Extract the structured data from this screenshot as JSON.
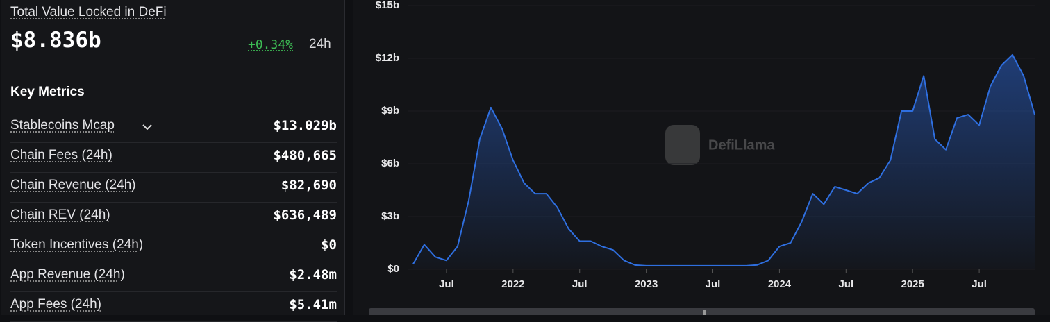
{
  "header": {
    "title": "Total Value Locked in DeFi",
    "value": "$8.836b",
    "change": "+0.34%",
    "period": "24h"
  },
  "key_metrics": {
    "title": "Key Metrics",
    "rows": [
      {
        "label": "Stablecoins Mcap",
        "value": "$13.029b"
      },
      {
        "label": "Chain Fees (24h)",
        "value": "$480,665"
      },
      {
        "label": "Chain Revenue (24h)",
        "value": "$82,690"
      },
      {
        "label": "Chain REV (24h)",
        "value": "$636,489"
      },
      {
        "label": "Token Incentives (24h)",
        "value": "$0"
      },
      {
        "label": "App Revenue (24h)",
        "value": "$2.48m"
      },
      {
        "label": "App Fees (24h)",
        "value": "$5.41m"
      }
    ]
  },
  "watermark": "DefiLlama",
  "chart_data": {
    "type": "area",
    "x": [
      "2021-04",
      "2021-05",
      "2021-06",
      "2021-07",
      "2021-08",
      "2021-09",
      "2021-10",
      "2021-11",
      "2021-12",
      "2022-01",
      "2022-02",
      "2022-03",
      "2022-04",
      "2022-05",
      "2022-06",
      "2022-07",
      "2022-08",
      "2022-09",
      "2022-10",
      "2022-11",
      "2022-12",
      "2023-01",
      "2023-02",
      "2023-03",
      "2023-04",
      "2023-05",
      "2023-06",
      "2023-07",
      "2023-08",
      "2023-09",
      "2023-10",
      "2023-11",
      "2023-12",
      "2024-01",
      "2024-02",
      "2024-03",
      "2024-04",
      "2024-05",
      "2024-06",
      "2024-07",
      "2024-08",
      "2024-09",
      "2024-10",
      "2024-11",
      "2024-12",
      "2025-01",
      "2025-02",
      "2025-03",
      "2025-04",
      "2025-05",
      "2025-06",
      "2025-07",
      "2025-08",
      "2025-09",
      "2025-10",
      "2025-11",
      "2025-12"
    ],
    "values": [
      0.3,
      1.4,
      0.7,
      0.5,
      1.3,
      3.9,
      7.4,
      9.2,
      8.0,
      6.2,
      4.9,
      4.3,
      4.3,
      3.5,
      2.3,
      1.6,
      1.6,
      1.3,
      1.1,
      0.5,
      0.24,
      0.2,
      0.2,
      0.2,
      0.2,
      0.2,
      0.2,
      0.2,
      0.2,
      0.2,
      0.2,
      0.25,
      0.5,
      1.3,
      1.5,
      2.7,
      4.3,
      3.7,
      4.7,
      4.5,
      4.3,
      4.9,
      5.2,
      6.2,
      9.0,
      9.0,
      11.0,
      7.4,
      6.8,
      8.6,
      8.8,
      8.2,
      10.4,
      11.6,
      12.2,
      11.0,
      8.8
    ],
    "color": "#2f6fe0",
    "xlim": [
      "2021-04",
      "2025-12"
    ],
    "xticks": [
      {
        "value": "2021-07",
        "label": "Jul"
      },
      {
        "value": "2022-01",
        "label": "2022"
      },
      {
        "value": "2022-07",
        "label": "Jul"
      },
      {
        "value": "2023-01",
        "label": "2023"
      },
      {
        "value": "2023-07",
        "label": "Jul"
      },
      {
        "value": "2024-01",
        "label": "2024"
      },
      {
        "value": "2024-07",
        "label": "Jul"
      },
      {
        "value": "2025-01",
        "label": "2025"
      },
      {
        "value": "2025-07",
        "label": "Jul"
      }
    ],
    "ylim": [
      0,
      15
    ],
    "yticks": [
      {
        "value": 0,
        "label": "$0"
      },
      {
        "value": 3,
        "label": "$3b"
      },
      {
        "value": 6,
        "label": "$6b"
      },
      {
        "value": 9,
        "label": "$9b"
      },
      {
        "value": 12,
        "label": "$12b"
      },
      {
        "value": 15,
        "label": "$15b"
      }
    ]
  }
}
